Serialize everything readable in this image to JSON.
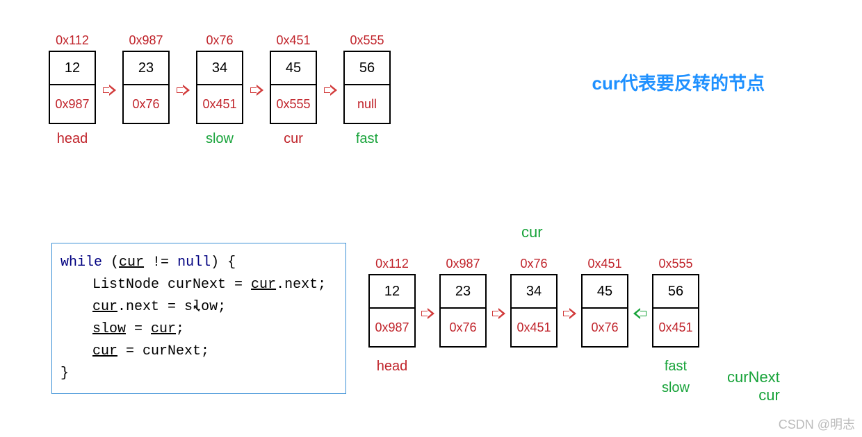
{
  "colors": {
    "addr": "#c0232a",
    "nextText": "#c0232a",
    "arrowRed": "#d23b3b",
    "arrowGreen": "#18a33a",
    "labelGreen": "#18a33a",
    "labelRed": "#c0232a",
    "captionBlue": "#1e90ff",
    "codeKw": "#000080",
    "border": "#000000"
  },
  "caption": "cur代表要反转的节点",
  "top_list": {
    "nodes": [
      {
        "addr": "0x112",
        "val": "12",
        "next": "0x987",
        "label": "head",
        "labelColor": "labelRed"
      },
      {
        "addr": "0x987",
        "val": "23",
        "next": "0x76",
        "label": "",
        "labelColor": ""
      },
      {
        "addr": "0x76",
        "val": "34",
        "next": "0x451",
        "label": "slow",
        "labelColor": "labelGreen"
      },
      {
        "addr": "0x451",
        "val": "45",
        "next": "0x555",
        "label": "cur",
        "labelColor": "labelRed"
      },
      {
        "addr": "0x555",
        "val": "56",
        "next": "null",
        "label": "fast",
        "labelColor": "labelGreen"
      }
    ],
    "arrowColor": "arrowRed"
  },
  "bottom_list": {
    "topLabel": {
      "text": "cur",
      "color": "labelGreen",
      "nodeIndex": 2
    },
    "nodes": [
      {
        "addr": "0x112",
        "val": "12",
        "next": "0x987"
      },
      {
        "addr": "0x987",
        "val": "23",
        "next": "0x76"
      },
      {
        "addr": "0x76",
        "val": "34",
        "next": "0x451"
      },
      {
        "addr": "0x451",
        "val": "45",
        "next": "0x76"
      },
      {
        "addr": "0x555",
        "val": "56",
        "next": "0x451"
      }
    ],
    "arrows": [
      {
        "dir": "right",
        "color": "arrowRed"
      },
      {
        "dir": "right",
        "color": "arrowRed"
      },
      {
        "dir": "right",
        "color": "arrowRed"
      },
      {
        "dir": "left",
        "color": "arrowGreen"
      },
      {
        "dir": "left",
        "color": "arrowGreen"
      }
    ],
    "labelsBelow": [
      {
        "nodeIndex": 0,
        "lines": [
          {
            "text": "head",
            "color": "labelRed"
          }
        ]
      },
      {
        "nodeIndex": 4,
        "lines": [
          {
            "text": "fast",
            "color": "labelGreen"
          },
          {
            "text": "slow",
            "color": "labelGreen"
          }
        ]
      }
    ],
    "sideLabels": [
      {
        "text": "curNext",
        "color": "labelGreen"
      },
      {
        "text": "cur",
        "color": "labelGreen"
      }
    ]
  },
  "code": {
    "while": "while",
    "open": " (",
    "curU": "cur",
    "ne": " != ",
    "nullKw": "null",
    "close": ") {",
    "l2a": "ListNode curNext = ",
    "l2b": "cur",
    "l2c": ".next;",
    "l3a": "cur",
    "l3b": ".next = s",
    "l3c": "l",
    "l3d": "ow;",
    "l4a": "slow",
    "l4b": " = ",
    "l4c": "cur",
    "l4d": ";",
    "l5a": "cur",
    "l5b": " = curNext;",
    "l6": "}"
  },
  "watermark": "CSDN @明志"
}
